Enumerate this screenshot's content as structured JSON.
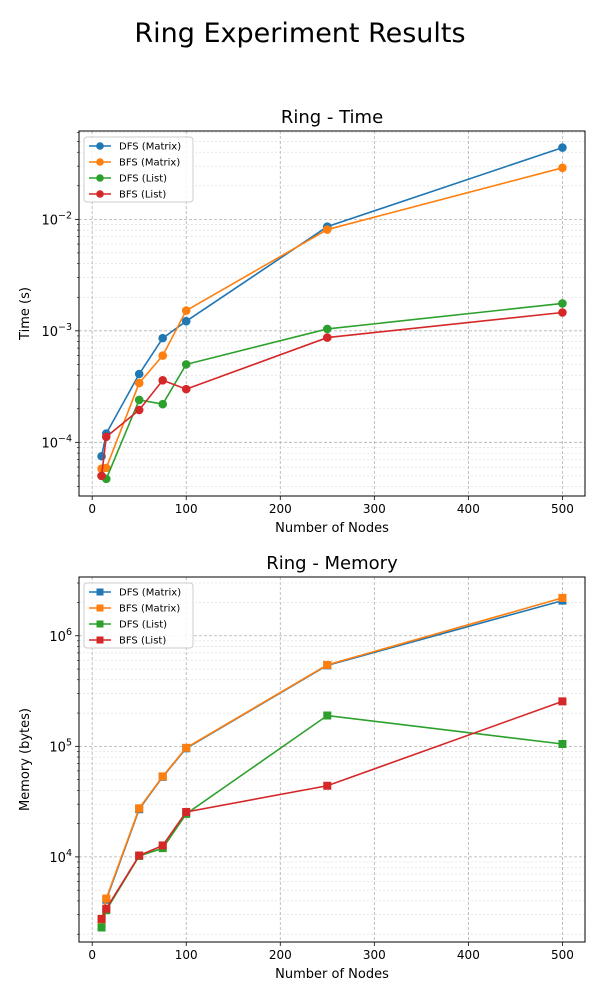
{
  "figure": {
    "suptitle": "Ring Experiment Results"
  },
  "chart_data": [
    {
      "type": "line",
      "title": "Ring - Time",
      "xlabel": "Number of Nodes",
      "ylabel": "Time (s)",
      "yscale": "log",
      "grid": true,
      "legend_position": "top-left",
      "marker": "circle",
      "xlim": [
        -14,
        524
      ],
      "ylim": [
        3.3e-05,
        0.062
      ],
      "xticks": [
        0,
        100,
        200,
        300,
        400,
        500
      ],
      "yticks": [
        0.0001,
        0.001,
        0.01
      ],
      "x": [
        10,
        15,
        50,
        75,
        100,
        250,
        500
      ],
      "series": [
        {
          "name": "DFS (Matrix)",
          "color": "#1f77b4",
          "values": [
            7.5e-05,
            0.00012,
            0.00041,
            0.00086,
            0.00122,
            0.0086,
            0.044
          ]
        },
        {
          "name": "BFS (Matrix)",
          "color": "#ff7f0e",
          "values": [
            5.8e-05,
            5.9e-05,
            0.00034,
            0.0006,
            0.00152,
            0.0081,
            0.029
          ]
        },
        {
          "name": "DFS (List)",
          "color": "#2ca02c",
          "values": [
            5e-05,
            4.7e-05,
            0.00024,
            0.00022,
            0.0005,
            0.00104,
            0.00176
          ]
        },
        {
          "name": "BFS (List)",
          "color": "#d62728",
          "values": [
            5e-05,
            0.000112,
            0.000195,
            0.00036,
            0.0003,
            0.00087,
            0.00146
          ]
        }
      ]
    },
    {
      "type": "line",
      "title": "Ring - Memory",
      "xlabel": "Number of Nodes",
      "ylabel": "Memory (bytes)",
      "yscale": "log",
      "grid": true,
      "legend_position": "top-left",
      "marker": "square",
      "xlim": [
        -14,
        524
      ],
      "ylim": [
        1700,
        3400000
      ],
      "xticks": [
        0,
        100,
        200,
        300,
        400,
        500
      ],
      "yticks": [
        10000,
        100000,
        1000000
      ],
      "x": [
        10,
        15,
        50,
        75,
        100,
        250,
        500
      ],
      "series": [
        {
          "name": "DFS (Matrix)",
          "color": "#1f77b4",
          "values": [
            2700,
            4100,
            27000,
            53000,
            96000,
            540000,
            2080000
          ]
        },
        {
          "name": "BFS (Matrix)",
          "color": "#ff7f0e",
          "values": [
            2700,
            4200,
            27500,
            53500,
            97000,
            545000,
            2200000
          ]
        },
        {
          "name": "DFS (List)",
          "color": "#2ca02c",
          "values": [
            2300,
            3300,
            10200,
            12000,
            24500,
            190000,
            105000
          ]
        },
        {
          "name": "BFS (List)",
          "color": "#d62728",
          "values": [
            2750,
            3400,
            10300,
            12700,
            25500,
            44000,
            255000
          ]
        }
      ]
    }
  ]
}
